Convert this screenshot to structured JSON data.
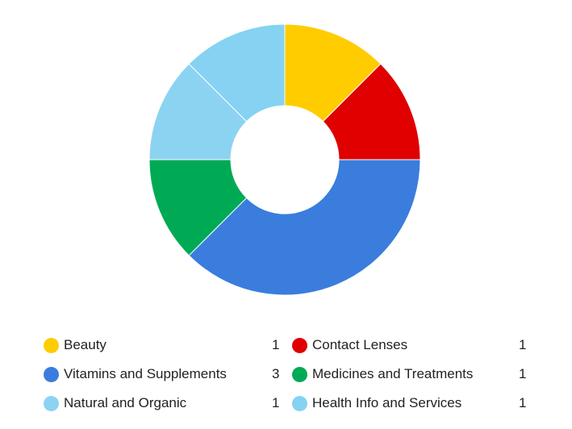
{
  "chart_data": {
    "type": "pie",
    "donut": true,
    "title": "",
    "legend_position": "bottom",
    "series": [
      {
        "name": "Beauty",
        "value": 1,
        "color": "#FFCC00"
      },
      {
        "name": "Contact Lenses",
        "value": 1,
        "color": "#E00000"
      },
      {
        "name": "Vitamins and Supplements",
        "value": 3,
        "color": "#3A7DDD"
      },
      {
        "name": "Medicines and Treatments",
        "value": 1,
        "color": "#00AA55"
      },
      {
        "name": "Natural and Organic",
        "value": 1,
        "color": "#8CD3F2"
      },
      {
        "name": "Health Info and Services",
        "value": 1,
        "color": "#85D2F2"
      }
    ]
  }
}
